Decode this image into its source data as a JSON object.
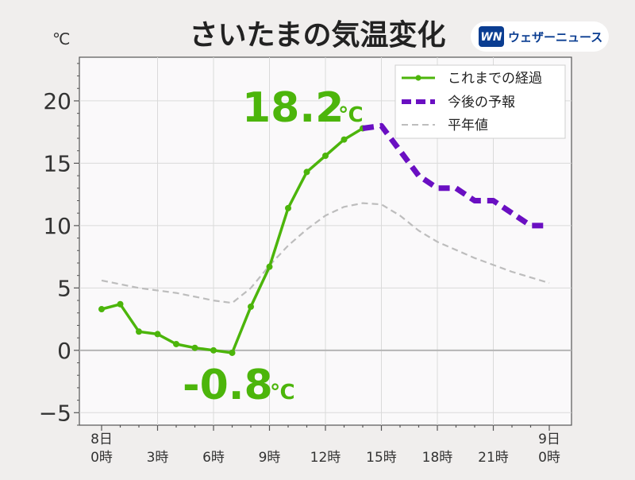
{
  "title": "さいたまの気温変化",
  "brand": {
    "logo_mark": "WN",
    "name": "ウェザーニュース",
    "color": "#0a3d91"
  },
  "unit_label": "℃",
  "annotations": {
    "max": {
      "value": "18.2",
      "unit": "℃"
    },
    "min": {
      "value": "-0.8",
      "unit": "℃"
    }
  },
  "colors": {
    "observed": "#4cb50b",
    "forecast": "#6a0fc2",
    "normal": "#bdbdbd",
    "zero_line": "#b5b5b5",
    "grid": "#dadada",
    "plot_bg": "#faf9fa"
  },
  "chart_data": {
    "type": "line",
    "title": "さいたまの気温変化",
    "ylabel": "℃",
    "xlim": [
      0,
      24
    ],
    "ylim": [
      -6,
      23.5
    ],
    "yticks": [
      -5,
      0,
      5,
      10,
      15,
      20
    ],
    "ytick_labels": [
      "−5",
      "0",
      "5",
      "10",
      "15",
      "20"
    ],
    "grid": true,
    "legend_position": "top-right",
    "xticks": [
      {
        "x": 0,
        "label": [
          "8日",
          "0時"
        ]
      },
      {
        "x": 3,
        "label": [
          "",
          "3時"
        ]
      },
      {
        "x": 6,
        "label": [
          "",
          "6時"
        ]
      },
      {
        "x": 9,
        "label": [
          "",
          "9時"
        ]
      },
      {
        "x": 12,
        "label": [
          "",
          "12時"
        ]
      },
      {
        "x": 15,
        "label": [
          "",
          "15時"
        ]
      },
      {
        "x": 18,
        "label": [
          "",
          "18時"
        ]
      },
      {
        "x": 21,
        "label": [
          "",
          "21時"
        ]
      },
      {
        "x": 24,
        "label": [
          "9日",
          "0時"
        ]
      }
    ],
    "series": [
      {
        "name": "これまでの経過",
        "style": "solid-markers",
        "x": [
          0,
          1,
          2,
          3,
          4,
          5,
          6,
          7,
          8,
          9,
          10,
          11,
          12,
          13,
          14
        ],
        "y": [
          3.3,
          3.7,
          1.5,
          1.3,
          0.5,
          0.2,
          0.0,
          -0.2,
          3.5,
          6.7,
          11.4,
          14.3,
          15.6,
          16.9,
          17.8
        ]
      },
      {
        "name": "今後の予報",
        "style": "dashed-thick",
        "x": [
          14,
          15,
          16,
          17,
          18,
          19,
          20,
          21,
          22,
          23,
          24
        ],
        "y": [
          17.8,
          18.0,
          16.0,
          14.0,
          13.0,
          13.0,
          12.0,
          12.0,
          11.0,
          10.0,
          10.0
        ]
      },
      {
        "name": "平年値",
        "style": "dashed-thin",
        "x": [
          0,
          2,
          4,
          6,
          7,
          8,
          9,
          10,
          11,
          12,
          13,
          14,
          15,
          16,
          17,
          18,
          20,
          22,
          24
        ],
        "y": [
          5.6,
          5.0,
          4.6,
          4.0,
          3.8,
          5.0,
          6.8,
          8.4,
          9.7,
          10.8,
          11.5,
          11.8,
          11.7,
          10.8,
          9.6,
          8.7,
          7.4,
          6.3,
          5.4
        ]
      }
    ]
  }
}
